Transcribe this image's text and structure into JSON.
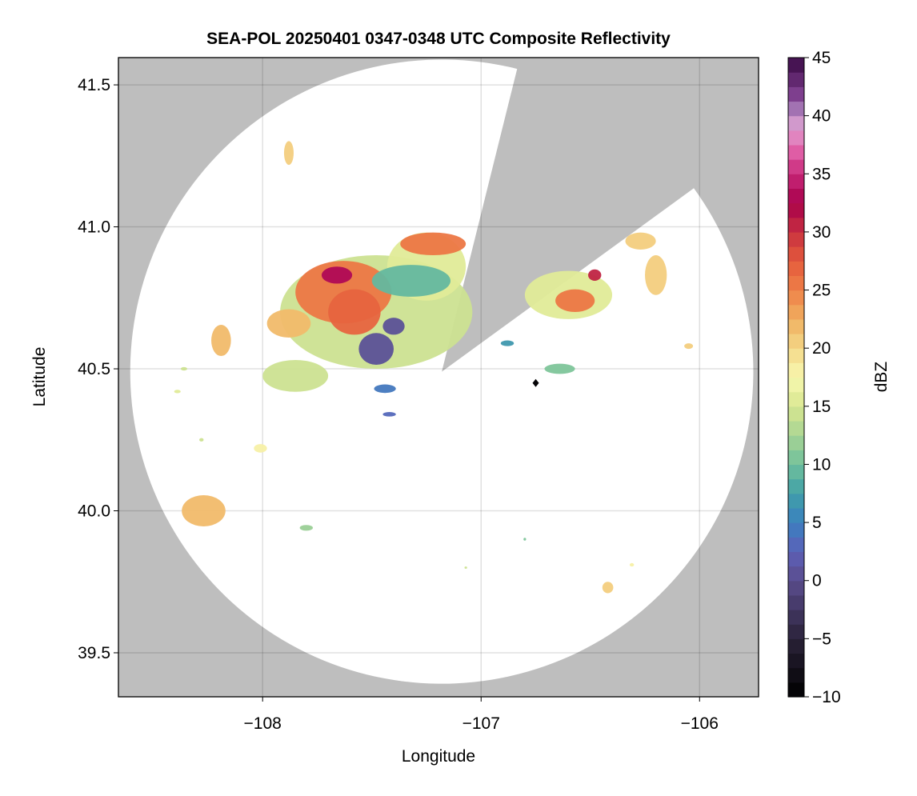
{
  "chart_data": {
    "type": "heatmap",
    "title": "SEA-POL 20250401 0347-0348 UTC Composite Reflectivity",
    "xlabel": "Longitude",
    "ylabel": "Latitude",
    "xlim": [
      -108.66,
      -105.73
    ],
    "ylim": [
      39.345,
      41.596
    ],
    "xticks": [
      -108,
      -107,
      -106
    ],
    "xtick_labels": [
      "−108",
      "−107",
      "−106"
    ],
    "yticks": [
      39.5,
      40.0,
      40.5,
      41.0,
      41.5
    ],
    "ytick_labels": [
      "39.5",
      "40.0",
      "40.5",
      "41.0",
      "41.5"
    ],
    "grid": true,
    "background_color": "#bebebe",
    "coverage": {
      "center_lon": -107.18,
      "center_lat": 40.49,
      "radius_lon_deg": 1.426,
      "radius_lat_deg": 1.099,
      "blocked_azimuth_deg": [
        14,
        54
      ]
    },
    "colorbar": {
      "label": "dBZ",
      "range": [
        -10,
        45
      ],
      "step": 1.25,
      "ticks": [
        -10,
        -5,
        0,
        5,
        10,
        15,
        20,
        25,
        30,
        35,
        40,
        45
      ],
      "tick_labels": [
        "−10",
        "−5",
        "0",
        "5",
        "10",
        "15",
        "20",
        "25",
        "30",
        "35",
        "40",
        "45"
      ],
      "anchors": [
        [
          -10,
          "#000000"
        ],
        [
          -5,
          "#2a2238"
        ],
        [
          0,
          "#5a4c8c"
        ],
        [
          2.5,
          "#5c60b8"
        ],
        [
          5,
          "#3a80c0"
        ],
        [
          7.5,
          "#40a0a8"
        ],
        [
          10,
          "#70c09c"
        ],
        [
          12.5,
          "#a8d494"
        ],
        [
          15,
          "#d8e690"
        ],
        [
          17.5,
          "#f8f8b0"
        ],
        [
          20,
          "#f4d888"
        ],
        [
          22.5,
          "#f0b060"
        ],
        [
          25,
          "#ee8048"
        ],
        [
          27.5,
          "#e45a3c"
        ],
        [
          30,
          "#c83040"
        ],
        [
          32.5,
          "#a8004a"
        ],
        [
          35,
          "#c8287a"
        ],
        [
          37,
          "#e060a8"
        ],
        [
          39,
          "#e2a0d0"
        ],
        [
          40,
          "#b48cc4"
        ],
        [
          42,
          "#7a3a8a"
        ],
        [
          45,
          "#3a0a45"
        ]
      ]
    },
    "echoes": [
      {
        "lon": -107.48,
        "lat": 40.7,
        "rlon": 0.44,
        "rlat": 0.2,
        "dbz": 14
      },
      {
        "lon": -107.25,
        "lat": 40.86,
        "rlon": 0.18,
        "rlat": 0.12,
        "dbz": 16
      },
      {
        "lon": -107.63,
        "lat": 40.77,
        "rlon": 0.22,
        "rlat": 0.11,
        "dbz": 25
      },
      {
        "lon": -107.58,
        "lat": 40.7,
        "rlon": 0.12,
        "rlat": 0.08,
        "dbz": 27
      },
      {
        "lon": -107.66,
        "lat": 40.83,
        "rlon": 0.07,
        "rlat": 0.03,
        "dbz": 33
      },
      {
        "lon": -107.32,
        "lat": 40.81,
        "rlon": 0.18,
        "rlat": 0.056,
        "dbz": 9
      },
      {
        "lon": -107.22,
        "lat": 40.94,
        "rlon": 0.15,
        "rlat": 0.04,
        "dbz": 26
      },
      {
        "lon": -107.48,
        "lat": 40.57,
        "rlon": 0.08,
        "rlat": 0.056,
        "dbz": 1
      },
      {
        "lon": -107.4,
        "lat": 40.65,
        "rlon": 0.05,
        "rlat": 0.03,
        "dbz": 1
      },
      {
        "lon": -107.88,
        "lat": 40.66,
        "rlon": 0.1,
        "rlat": 0.05,
        "dbz": 22
      },
      {
        "lon": -107.85,
        "lat": 40.475,
        "rlon": 0.15,
        "rlat": 0.056,
        "dbz": 14
      },
      {
        "lon": -107.44,
        "lat": 40.43,
        "rlon": 0.05,
        "rlat": 0.015,
        "dbz": 4
      },
      {
        "lon": -107.42,
        "lat": 40.34,
        "rlon": 0.03,
        "rlat": 0.008,
        "dbz": 3
      },
      {
        "lon": -106.6,
        "lat": 40.76,
        "rlon": 0.2,
        "rlat": 0.085,
        "dbz": 16
      },
      {
        "lon": -106.57,
        "lat": 40.74,
        "rlon": 0.09,
        "rlat": 0.04,
        "dbz": 25
      },
      {
        "lon": -106.48,
        "lat": 40.83,
        "rlon": 0.03,
        "rlat": 0.02,
        "dbz": 30
      },
      {
        "lon": -106.27,
        "lat": 40.95,
        "rlon": 0.07,
        "rlat": 0.03,
        "dbz": 20
      },
      {
        "lon": -106.2,
        "lat": 40.83,
        "rlon": 0.05,
        "rlat": 0.07,
        "dbz": 20
      },
      {
        "lon": -106.64,
        "lat": 40.5,
        "rlon": 0.07,
        "rlat": 0.018,
        "dbz": 10
      },
      {
        "lon": -106.88,
        "lat": 40.59,
        "rlon": 0.03,
        "rlat": 0.01,
        "dbz": 7
      },
      {
        "lon": -108.19,
        "lat": 40.6,
        "rlon": 0.045,
        "rlat": 0.055,
        "dbz": 22
      },
      {
        "lon": -107.88,
        "lat": 41.26,
        "rlon": 0.022,
        "rlat": 0.042,
        "dbz": 20
      },
      {
        "lon": -108.27,
        "lat": 40.0,
        "rlon": 0.1,
        "rlat": 0.055,
        "dbz": 22
      },
      {
        "lon": -108.01,
        "lat": 40.22,
        "rlon": 0.03,
        "rlat": 0.015,
        "dbz": 18
      },
      {
        "lon": -107.8,
        "lat": 39.94,
        "rlon": 0.03,
        "rlat": 0.01,
        "dbz": 12
      },
      {
        "lon": -106.42,
        "lat": 39.73,
        "rlon": 0.025,
        "rlat": 0.02,
        "dbz": 20
      },
      {
        "lon": -106.05,
        "lat": 40.58,
        "rlon": 0.02,
        "rlat": 0.01,
        "dbz": 20
      },
      {
        "lon": -106.75,
        "lat": 40.45,
        "rlon": 0.01,
        "rlat": 0.008,
        "dbz": -10
      },
      {
        "lon": -108.36,
        "lat": 40.5,
        "rlon": 0.015,
        "rlat": 0.006,
        "dbz": 14
      },
      {
        "lon": -108.39,
        "lat": 40.42,
        "rlon": 0.015,
        "rlat": 0.006,
        "dbz": 16
      },
      {
        "lon": -106.8,
        "lat": 39.9,
        "rlon": 0.006,
        "rlat": 0.005,
        "dbz": 10
      },
      {
        "lon": -107.07,
        "lat": 39.8,
        "rlon": 0.006,
        "rlat": 0.004,
        "dbz": 14
      },
      {
        "lon": -106.31,
        "lat": 39.81,
        "rlon": 0.01,
        "rlat": 0.006,
        "dbz": 18
      },
      {
        "lon": -108.28,
        "lat": 40.25,
        "rlon": 0.01,
        "rlat": 0.006,
        "dbz": 14
      }
    ]
  }
}
